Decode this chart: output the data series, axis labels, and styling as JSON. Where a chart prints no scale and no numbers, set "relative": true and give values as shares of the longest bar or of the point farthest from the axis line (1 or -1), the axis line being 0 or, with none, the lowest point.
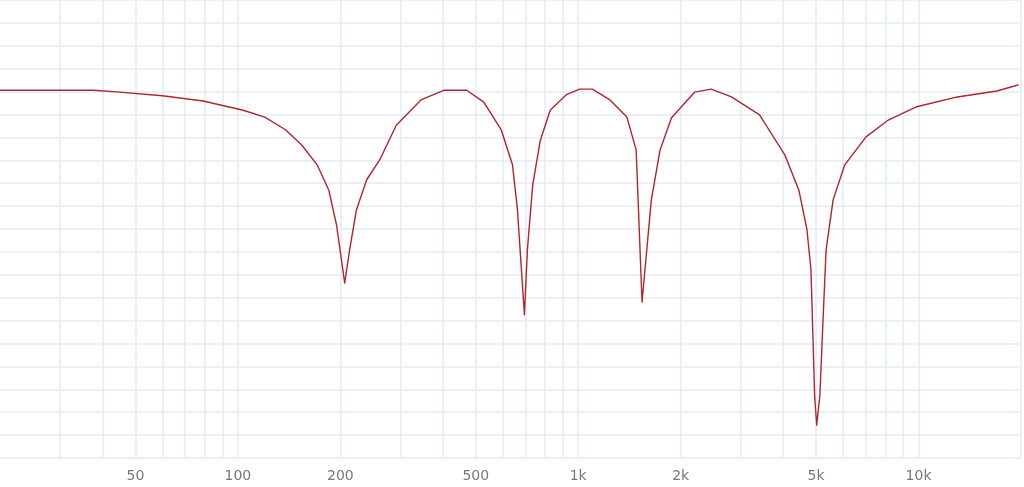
{
  "chart_data": {
    "type": "line",
    "relative": true,
    "grid": true,
    "marker": "none",
    "line_style": "solid",
    "log": "x",
    "xlim": [
      20,
      20000
    ],
    "xticks": [
      {
        "value": 30,
        "label": null
      },
      {
        "value": 40,
        "label": null
      },
      50,
      {
        "value": 60,
        "label": null
      },
      {
        "value": 70,
        "label": null
      },
      {
        "value": 80,
        "label": null
      },
      {
        "value": 90,
        "label": null
      },
      100,
      200,
      {
        "value": 300,
        "label": null
      },
      {
        "value": 400,
        "label": null
      },
      500,
      {
        "value": 600,
        "label": null
      },
      {
        "value": 700,
        "label": null
      },
      {
        "value": 800,
        "label": null
      },
      {
        "value": 900,
        "label": null
      },
      {
        "value": 1000,
        "label": "1k"
      },
      {
        "value": 2000,
        "label": "2k"
      },
      {
        "value": 3000,
        "label": null
      },
      {
        "value": 4000,
        "label": null
      },
      {
        "value": 5000,
        "label": "5k"
      },
      {
        "value": 6000,
        "label": null
      },
      {
        "value": 7000,
        "label": null
      },
      {
        "value": 8000,
        "label": null
      },
      {
        "value": 9000,
        "label": null
      },
      {
        "value": 10000,
        "label": "10k"
      },
      {
        "value": 20000,
        "label": null
      }
    ],
    "series": [
      {
        "color": "#b0262a",
        "x": [
          20,
          37.7,
          45,
          60,
          79,
          103,
          120,
          138,
          154,
          171,
          185,
          195,
          206,
          213,
          223,
          239,
          261,
          292,
          345,
          404,
          470,
          528,
          594,
          641,
          663,
          695,
          709,
          735,
          774,
          828,
          923,
          1010,
          1100,
          1240,
          1390,
          1480,
          1540,
          1590,
          1640,
          1740,
          1880,
          2200,
          2460,
          2820,
          3410,
          4050,
          4450,
          4700,
          4830,
          4950,
          5020,
          5130,
          5240,
          5350,
          5610,
          6070,
          7010,
          8150,
          9810,
          13000,
          17000,
          19600
        ],
        "values": [
          0.986,
          0.986,
          0.981,
          0.971,
          0.957,
          0.933,
          0.914,
          0.88,
          0.839,
          0.786,
          0.718,
          0.624,
          0.469,
          0.558,
          0.665,
          0.746,
          0.799,
          0.892,
          0.96,
          0.986,
          0.986,
          0.954,
          0.88,
          0.786,
          0.665,
          0.384,
          0.558,
          0.732,
          0.852,
          0.933,
          0.974,
          0.989,
          0.989,
          0.96,
          0.914,
          0.826,
          0.418,
          0.558,
          0.692,
          0.826,
          0.912,
          0.981,
          0.989,
          0.968,
          0.92,
          0.812,
          0.718,
          0.612,
          0.504,
          0.169,
          0.088,
          0.169,
          0.37,
          0.558,
          0.692,
          0.786,
          0.861,
          0.906,
          0.941,
          0.968,
          0.984,
          1
        ]
      }
    ]
  }
}
